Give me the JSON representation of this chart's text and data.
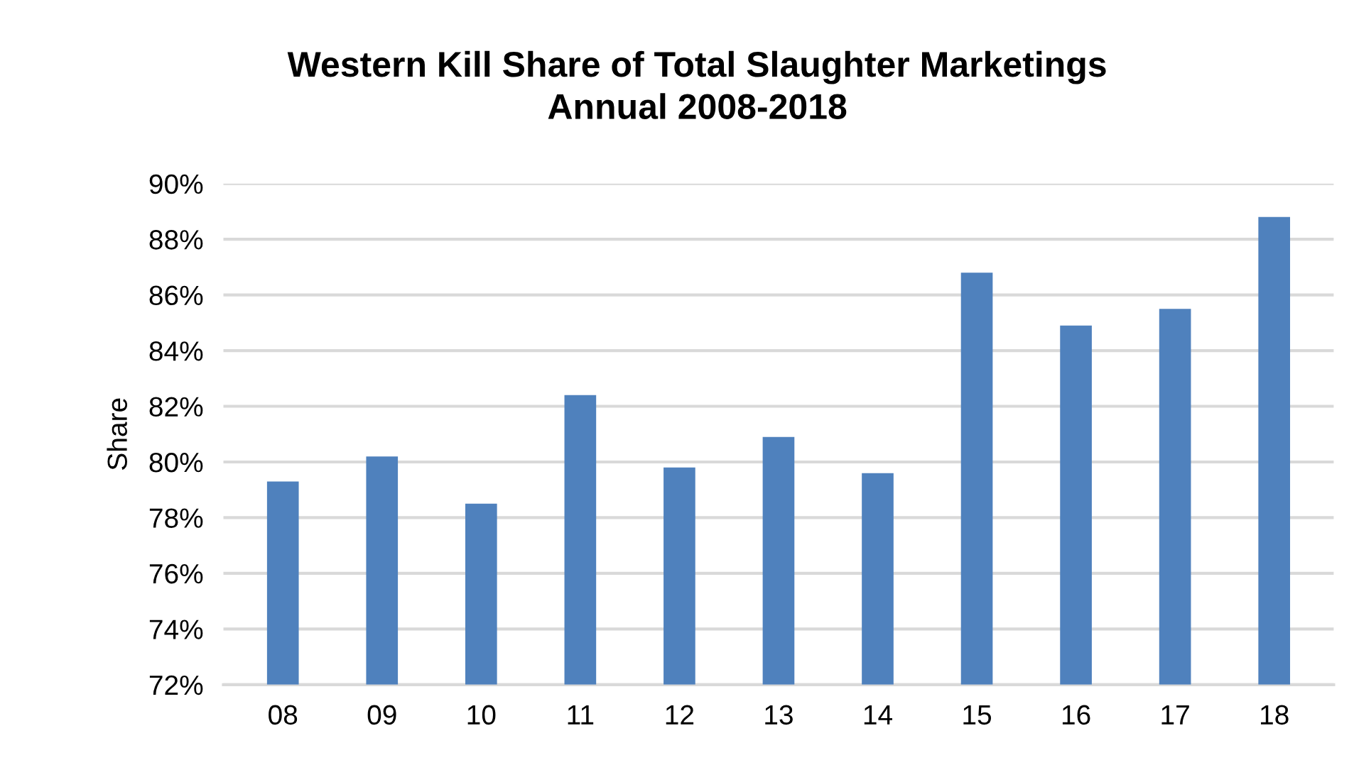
{
  "chart_data": {
    "type": "bar",
    "title": "Western Kill Share of Total Slaughter Marketings\nAnnual 2008-2018",
    "ylabel": "Share",
    "categories": [
      "08",
      "09",
      "10",
      "11",
      "12",
      "13",
      "14",
      "15",
      "16",
      "17",
      "18"
    ],
    "values": [
      79.3,
      80.2,
      78.5,
      82.4,
      79.8,
      80.9,
      79.6,
      86.8,
      84.9,
      85.5,
      88.8
    ],
    "color": "#4f81bd",
    "ylim": [
      72,
      90
    ],
    "yticks": [
      {
        "value": 72,
        "label": "72%"
      },
      {
        "value": 74,
        "label": "74%"
      },
      {
        "value": 76,
        "label": "76%"
      },
      {
        "value": 78,
        "label": "78%"
      },
      {
        "value": 80,
        "label": "80%"
      },
      {
        "value": 82,
        "label": "82%"
      },
      {
        "value": 84,
        "label": "84%"
      },
      {
        "value": 86,
        "label": "86%"
      },
      {
        "value": 88,
        "label": "88%"
      },
      {
        "value": 90,
        "label": "90%"
      }
    ],
    "grid": "y",
    "legend": false
  }
}
